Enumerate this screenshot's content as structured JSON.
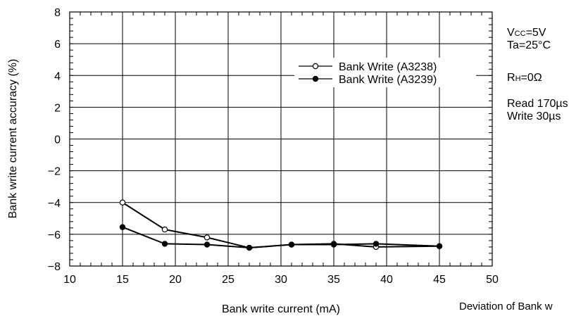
{
  "chart_data": {
    "type": "line",
    "xlabel": "Bank write current (mA)",
    "ylabel": "Bank write current accuracy (%)",
    "xlim": [
      10,
      50
    ],
    "ylim": [
      -8,
      8
    ],
    "xticks": [
      "10",
      "15",
      "20",
      "25",
      "30",
      "35",
      "40",
      "45",
      "50"
    ],
    "yticks": [
      "8",
      "6",
      "4",
      "2",
      "0",
      "−2",
      "−4",
      "−6",
      "−8"
    ],
    "x_minor_step": 1,
    "y_minor_step": 0.4,
    "grid": true,
    "legend_position": "top-right",
    "series": [
      {
        "name": "Bank Write (A3238)",
        "marker": "open-circle",
        "x": [
          15,
          19,
          23,
          27,
          31,
          35,
          39,
          45
        ],
        "y": [
          -4.0,
          -5.7,
          -6.2,
          -6.85,
          -6.65,
          -6.6,
          -6.8,
          -6.75
        ]
      },
      {
        "name": "Bank Write (A3239)",
        "marker": "filled-circle",
        "x": [
          15,
          19,
          23,
          27,
          31,
          35,
          39,
          45
        ],
        "y": [
          -5.55,
          -6.6,
          -6.65,
          -6.85,
          -6.65,
          -6.65,
          -6.6,
          -6.75
        ]
      }
    ]
  },
  "conditions": {
    "vcc_main": "V",
    "vcc_sub": "CC",
    "vcc_value": "=5V",
    "ta": "Ta=25°C",
    "rh_main": "R",
    "rh_sub": "H",
    "rh_value": "=0Ω",
    "read": "Read 170µs",
    "write": "Write 30µs"
  },
  "caption": "Deviation of Bank w"
}
